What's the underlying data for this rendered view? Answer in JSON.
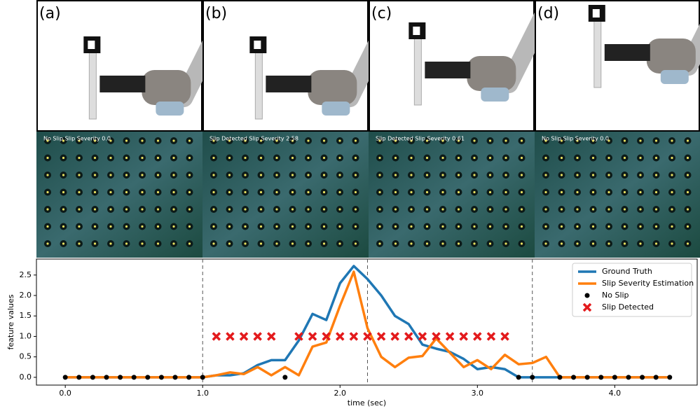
{
  "panels": [
    {
      "label": "(a)",
      "overlay": "No Slip   Slip Severity 0.0"
    },
    {
      "label": "(b)",
      "overlay": "Slip Detected   Slip Severity 2.58"
    },
    {
      "label": "(c)",
      "overlay": "Slip Detected   Slip Severity 0.61"
    },
    {
      "label": "(d)",
      "overlay": "No Slip   Slip Severity 0.0"
    }
  ],
  "chart_data": {
    "type": "line",
    "xlabel": "time (sec)",
    "ylabel": "feature values",
    "x": [
      0.0,
      0.1,
      0.2,
      0.3,
      0.4,
      0.5,
      0.6,
      0.7,
      0.8,
      0.9,
      1.0,
      1.1,
      1.2,
      1.3,
      1.4,
      1.5,
      1.6,
      1.7,
      1.8,
      1.9,
      2.0,
      2.1,
      2.2,
      2.3,
      2.4,
      2.5,
      2.6,
      2.7,
      2.8,
      2.9,
      3.0,
      3.1,
      3.2,
      3.3,
      3.4,
      3.5,
      3.6,
      3.7,
      3.8,
      3.9,
      4.0,
      4.1,
      4.2,
      4.3,
      4.4
    ],
    "series": [
      {
        "name": "Ground Truth",
        "color": "#1f77b4",
        "values": [
          0,
          0,
          0,
          0,
          0,
          0,
          0,
          0,
          0,
          0,
          0,
          0.05,
          0.05,
          0.1,
          0.3,
          0.42,
          0.42,
          0.9,
          1.55,
          1.4,
          2.3,
          2.72,
          2.4,
          2.0,
          1.5,
          1.3,
          0.8,
          0.7,
          0.62,
          0.45,
          0.2,
          0.25,
          0.2,
          0,
          0,
          0,
          0,
          0,
          0,
          0,
          0,
          0,
          0,
          0,
          0
        ]
      },
      {
        "name": "Slip Severity Estimation",
        "color": "#ff7f0e",
        "values": [
          0,
          0,
          0,
          0,
          0,
          0,
          0,
          0,
          0,
          0,
          0,
          0.05,
          0.12,
          0.08,
          0.25,
          0.05,
          0.25,
          0.05,
          0.75,
          0.85,
          1.75,
          2.58,
          1.2,
          0.5,
          0.25,
          0.48,
          0.52,
          0.95,
          0.6,
          0.25,
          0.42,
          0.2,
          0.55,
          0.32,
          0.35,
          0.5,
          0,
          0,
          0,
          0,
          0,
          0,
          0,
          0,
          0
        ]
      }
    ],
    "scatter": [
      {
        "name": "No Slip",
        "color": "#000000",
        "marker": "circle",
        "x": [
          0.0,
          0.1,
          0.2,
          0.3,
          0.4,
          0.5,
          0.6,
          0.7,
          0.8,
          0.9,
          1.0,
          1.6,
          3.3,
          3.4,
          3.6,
          3.7,
          3.8,
          3.9,
          4.0,
          4.1,
          4.2,
          4.3,
          4.4
        ],
        "values": [
          0,
          0,
          0,
          0,
          0,
          0,
          0,
          0,
          0,
          0,
          0,
          0,
          0,
          0,
          0,
          0,
          0,
          0,
          0,
          0,
          0,
          0,
          0
        ]
      },
      {
        "name": "Slip Detected",
        "color": "#e31a1c",
        "marker": "x",
        "x": [
          1.1,
          1.2,
          1.3,
          1.4,
          1.5,
          1.7,
          1.8,
          1.9,
          2.0,
          2.1,
          2.2,
          2.3,
          2.4,
          2.5,
          2.6,
          2.7,
          2.8,
          2.9,
          3.0,
          3.1,
          3.2
        ],
        "values": [
          1,
          1,
          1,
          1,
          1,
          1,
          1,
          1,
          1,
          1,
          1,
          1,
          1,
          1,
          1,
          1,
          1,
          1,
          1,
          1,
          1
        ]
      }
    ],
    "vlines": [
      1.0,
      2.2,
      3.4
    ],
    "xlim": [
      -0.21,
      4.6
    ],
    "ylim": [
      -0.19,
      2.89
    ],
    "xticks": [
      {
        "value": 0,
        "label": "0.0"
      },
      {
        "value": 1,
        "label": "1.0"
      },
      {
        "value": 2,
        "label": "2.0"
      },
      {
        "value": 3,
        "label": "3.0"
      },
      {
        "value": 4,
        "label": "4.0"
      }
    ],
    "yticks": [
      {
        "value": 0,
        "label": "0.0"
      },
      {
        "value": 0.5,
        "label": "0.5"
      },
      {
        "value": 1,
        "label": "1.0"
      },
      {
        "value": 1.5,
        "label": "1.5"
      },
      {
        "value": 2,
        "label": "2.0"
      },
      {
        "value": 2.5,
        "label": "2.5"
      }
    ],
    "legend": "upper right"
  }
}
